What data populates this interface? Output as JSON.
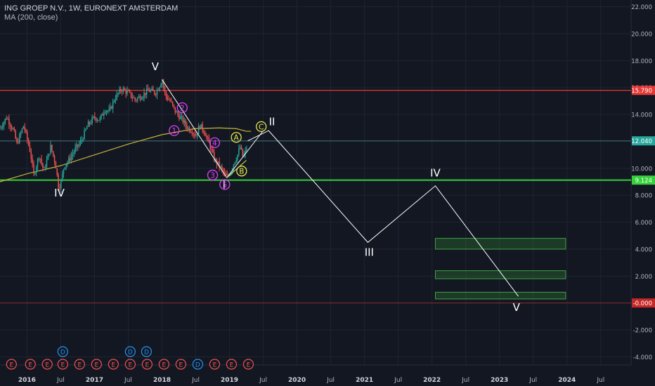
{
  "header": {
    "symbol": "ING GROEP N.V., 1W, EURONEXT AMSTERDAM",
    "indicator": "MA (200, close)"
  },
  "colors": {
    "background": "#131722",
    "grid": "#1f2433",
    "axis_text": "#b2b5be",
    "up": "#26a69a",
    "down": "#ef5350",
    "resistance": "#e53935",
    "support": "#35d03b",
    "ma": "#c6b43a",
    "wave_white": "#ffffff",
    "wave_pink": "#e040fb",
    "wave_yellow": "#e8e84a",
    "target_box": "#2e7d32",
    "price_tag_current": "#26a69a",
    "earnings_badge": "#ef5350",
    "dividend_badge": "#2196f3"
  },
  "chart_data": {
    "type": "candlestick",
    "y_axis": {
      "range": [
        -4.6,
        22.5
      ],
      "ticks": [
        "22.000",
        "20.000",
        "18.000",
        "16.000",
        "14.000",
        "12.000",
        "10.000",
        "8.000",
        "6.000",
        "4.000",
        "2.000",
        "-0.000",
        "-2.000",
        "-4.000"
      ],
      "tick_values": [
        22,
        20,
        18,
        16,
        14,
        12,
        10,
        8,
        6,
        4,
        2,
        0,
        -2,
        -4
      ]
    },
    "x_axis": {
      "range": [
        2015.6,
        2024.95
      ],
      "labels": [
        "2016",
        "Jul",
        "2017",
        "Jul",
        "2018",
        "Jul",
        "2019",
        "Jul",
        "2020",
        "Jul",
        "2021",
        "Jul",
        "2022",
        "Jul",
        "2023",
        "Jul",
        "2024",
        "Jul"
      ],
      "label_values": [
        2016.0,
        2016.5,
        2017.0,
        2017.5,
        2018.0,
        2018.5,
        2019.0,
        2019.5,
        2020.0,
        2020.5,
        2021.0,
        2021.5,
        2022.0,
        2022.5,
        2023.0,
        2023.5,
        2024.0,
        2024.5
      ]
    },
    "price_path": [
      [
        2015.6,
        13.0
      ],
      [
        2015.7,
        13.8
      ],
      [
        2015.8,
        12.8
      ],
      [
        2015.85,
        11.8
      ],
      [
        2015.95,
        13.2
      ],
      [
        2016.05,
        11.2
      ],
      [
        2016.1,
        9.5
      ],
      [
        2016.18,
        11.0
      ],
      [
        2016.25,
        9.8
      ],
      [
        2016.35,
        11.6
      ],
      [
        2016.42,
        10.4
      ],
      [
        2016.47,
        8.6
      ],
      [
        2016.5,
        8.9
      ],
      [
        2016.55,
        10.2
      ],
      [
        2016.62,
        10.6
      ],
      [
        2016.7,
        11.3
      ],
      [
        2016.8,
        12.0
      ],
      [
        2016.9,
        13.2
      ],
      [
        2017.0,
        13.8
      ],
      [
        2017.08,
        13.6
      ],
      [
        2017.15,
        14.4
      ],
      [
        2017.22,
        14.2
      ],
      [
        2017.3,
        15.2
      ],
      [
        2017.4,
        15.9
      ],
      [
        2017.5,
        15.6
      ],
      [
        2017.6,
        15.1
      ],
      [
        2017.7,
        15.4
      ],
      [
        2017.8,
        15.8
      ],
      [
        2017.9,
        15.6
      ],
      [
        2017.95,
        16.0
      ],
      [
        2018.0,
        16.6
      ],
      [
        2018.05,
        15.4
      ],
      [
        2018.12,
        15.0
      ],
      [
        2018.2,
        14.2
      ],
      [
        2018.3,
        13.6
      ],
      [
        2018.38,
        13.0
      ],
      [
        2018.45,
        12.8
      ],
      [
        2018.5,
        12.4
      ],
      [
        2018.56,
        13.2
      ],
      [
        2018.62,
        12.8
      ],
      [
        2018.7,
        11.8
      ],
      [
        2018.78,
        10.6
      ],
      [
        2018.85,
        10.2
      ],
      [
        2018.92,
        9.6
      ],
      [
        2018.96,
        9.3
      ],
      [
        2019.02,
        9.8
      ],
      [
        2019.08,
        10.6
      ],
      [
        2019.12,
        11.0
      ],
      [
        2019.16,
        11.6
      ],
      [
        2019.2,
        10.8
      ],
      [
        2019.25,
        11.4
      ],
      [
        2019.27,
        12.04
      ]
    ],
    "moving_average": {
      "name": "MA (200, close)",
      "points": [
        [
          2015.6,
          9.0
        ],
        [
          2016.0,
          9.6
        ],
        [
          2016.5,
          10.2
        ],
        [
          2017.0,
          11.0
        ],
        [
          2017.5,
          11.8
        ],
        [
          2018.0,
          12.5
        ],
        [
          2018.5,
          12.95
        ],
        [
          2018.85,
          13.0
        ],
        [
          2019.1,
          12.95
        ],
        [
          2019.25,
          12.75
        ],
        [
          2019.32,
          12.75
        ]
      ]
    },
    "horizontal_lines": [
      {
        "label": "15.790",
        "value": 15.79,
        "style": "resistance",
        "tag": true
      },
      {
        "label": "12.040",
        "value": 12.04,
        "style": "current",
        "tag": true
      },
      {
        "label": "9.124",
        "value": 9.124,
        "style": "support",
        "tag": true
      },
      {
        "label": "-0.000",
        "value": 0.0,
        "style": "zero",
        "tag": true
      }
    ],
    "projection_path": [
      [
        2019.27,
        12.04
      ],
      [
        2019.58,
        12.8
      ],
      [
        2021.05,
        4.5
      ],
      [
        2022.05,
        8.7
      ],
      [
        2023.28,
        0.5
      ]
    ],
    "support_wedge": {
      "from": [
        2018.96,
        9.3
      ],
      "upper_to": [
        2019.5,
        12.8
      ],
      "lower_to": [
        2019.25,
        10.6
      ]
    },
    "target_zones": [
      {
        "x": [
          2022.05,
          2023.98
        ],
        "y": [
          4.8,
          4.0
        ]
      },
      {
        "x": [
          2022.05,
          2023.98
        ],
        "y": [
          2.4,
          1.8
        ]
      },
      {
        "x": [
          2022.05,
          2023.98
        ],
        "y": [
          0.8,
          0.3
        ]
      }
    ],
    "wave_labels_major": [
      {
        "text": "IV",
        "x": 2016.48,
        "y": 7.9
      },
      {
        "text": "V",
        "x": 2017.9,
        "y": 17.3
      },
      {
        "text": "I",
        "x": 2018.92,
        "y": 8.5
      },
      {
        "text": "II",
        "x": 2019.63,
        "y": 13.2
      },
      {
        "text": "III",
        "x": 2021.07,
        "y": 3.5
      },
      {
        "text": "IV",
        "x": 2022.05,
        "y": 9.4
      },
      {
        "text": "V",
        "x": 2023.25,
        "y": -0.6
      }
    ],
    "wave_labels_minor_pink": [
      {
        "text": "1",
        "x": 2018.18,
        "y": 12.8
      },
      {
        "text": "2",
        "x": 2018.3,
        "y": 14.5
      },
      {
        "text": "3",
        "x": 2018.75,
        "y": 9.5
      },
      {
        "text": "4",
        "x": 2018.78,
        "y": 11.9
      },
      {
        "text": "5",
        "x": 2018.93,
        "y": 8.8
      }
    ],
    "wave_labels_minor_yellow": [
      {
        "text": "A",
        "x": 2019.1,
        "y": 12.3
      },
      {
        "text": "B",
        "x": 2019.18,
        "y": 9.8
      },
      {
        "text": "C",
        "x": 2019.47,
        "y": 13.1
      }
    ],
    "event_badges": [
      {
        "text": "E",
        "type": "earnings",
        "x": 2015.77,
        "row": 1
      },
      {
        "text": "E",
        "type": "earnings",
        "x": 2016.05,
        "row": 1
      },
      {
        "text": "E",
        "type": "earnings",
        "x": 2016.3,
        "row": 1
      },
      {
        "text": "E",
        "type": "earnings",
        "x": 2016.53,
        "row": 1
      },
      {
        "text": "D",
        "type": "dividend",
        "x": 2016.53,
        "row": 0
      },
      {
        "text": "E",
        "type": "earnings",
        "x": 2016.78,
        "row": 1
      },
      {
        "text": "E",
        "type": "earnings",
        "x": 2017.03,
        "row": 1
      },
      {
        "text": "E",
        "type": "earnings",
        "x": 2017.28,
        "row": 1
      },
      {
        "text": "E",
        "type": "earnings",
        "x": 2017.53,
        "row": 1
      },
      {
        "text": "D",
        "type": "dividend",
        "x": 2017.53,
        "row": 0
      },
      {
        "text": "E",
        "type": "earnings",
        "x": 2017.78,
        "row": 1
      },
      {
        "text": "D",
        "type": "dividend",
        "x": 2017.77,
        "row": 0
      },
      {
        "text": "E",
        "type": "earnings",
        "x": 2018.03,
        "row": 1
      },
      {
        "text": "E",
        "type": "earnings",
        "x": 2018.28,
        "row": 1
      },
      {
        "text": "D",
        "type": "dividend",
        "x": 2018.53,
        "row": 1
      },
      {
        "text": "E",
        "type": "earnings",
        "x": 2018.78,
        "row": 1
      },
      {
        "text": "E",
        "type": "earnings",
        "x": 2019.03,
        "row": 1
      },
      {
        "text": "E",
        "type": "earnings",
        "x": 2019.28,
        "row": 1
      }
    ]
  }
}
